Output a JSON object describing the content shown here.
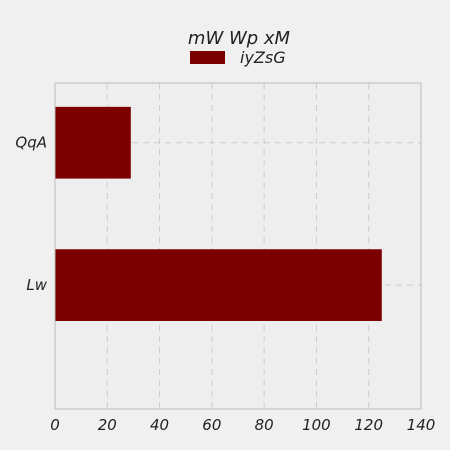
{
  "chart_data": {
    "type": "bar",
    "orientation": "horizontal",
    "title": "mW Wp xM",
    "xlabel": "",
    "ylabel": "",
    "categories": [
      "QqA",
      "Lw"
    ],
    "series": [
      {
        "name": "iyZsG",
        "values": [
          29,
          125
        ],
        "color": "#7b0000"
      }
    ],
    "xlim": [
      0,
      140
    ],
    "x_ticks": [
      0,
      20,
      40,
      60,
      80,
      100,
      120,
      140
    ],
    "grid": true,
    "legend": "top-center"
  },
  "colors": {
    "background": "#f0f0f0",
    "plot_background": "#eeeeee",
    "grid": "#cccccc",
    "frame": "#bbbbbb"
  }
}
